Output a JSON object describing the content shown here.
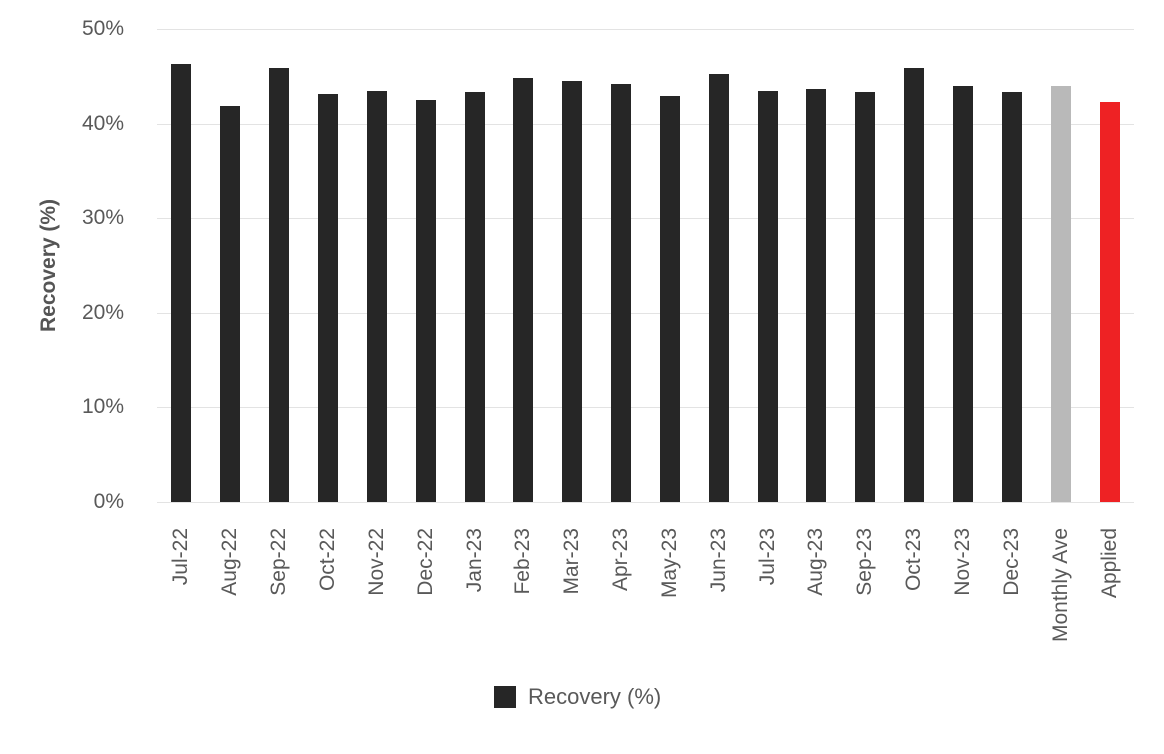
{
  "chart_data": {
    "type": "bar",
    "title": "",
    "xlabel": "",
    "ylabel": "Recovery (%)",
    "ylim": [
      0,
      50
    ],
    "yticks": [
      0,
      10,
      20,
      30,
      40,
      50
    ],
    "ytick_labels": [
      "0%",
      "10%",
      "20%",
      "30%",
      "40%",
      "50%"
    ],
    "grid": true,
    "categories": [
      "Jul-22",
      "Aug-22",
      "Sep-22",
      "Oct-22",
      "Nov-22",
      "Dec-22",
      "Jan-23",
      "Feb-23",
      "Mar-23",
      "Apr-23",
      "May-23",
      "Jun-23",
      "Jul-23",
      "Aug-23",
      "Sep-23",
      "Oct-23",
      "Nov-23",
      "Dec-23",
      "Monthly Ave",
      "Applied"
    ],
    "values": [
      46.3,
      41.9,
      45.9,
      43.1,
      43.5,
      42.5,
      43.3,
      44.8,
      44.5,
      44.2,
      42.9,
      45.2,
      43.5,
      43.7,
      43.3,
      45.9,
      44.0,
      43.3,
      44.0,
      42.3
    ],
    "bar_color_default": "#262626",
    "bar_color_overrides": {
      "Monthly Ave": "#b9b9b9",
      "Applied": "#ee2224"
    },
    "legend": {
      "position": "bottom",
      "entries": [
        {
          "label": "Recovery (%)",
          "color": "#262626"
        }
      ]
    }
  },
  "colors": {
    "background": "#ffffff",
    "gridline": "#e3e3e3",
    "tick_text": "#595959",
    "axis_title": "#555555"
  }
}
